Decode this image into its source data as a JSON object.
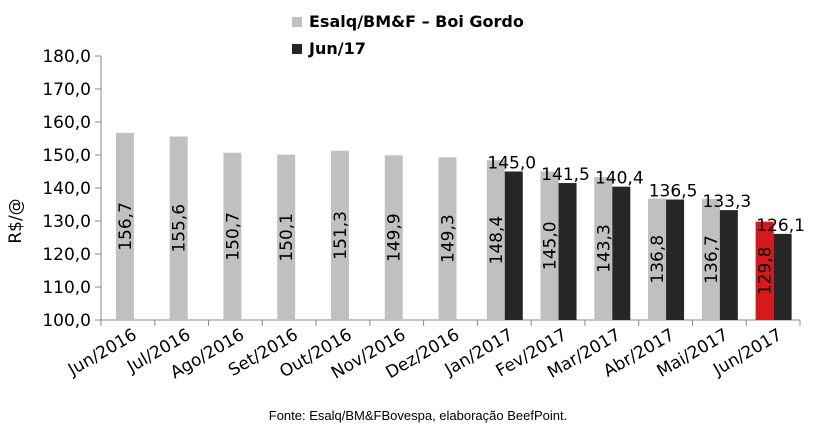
{
  "chart_data": {
    "type": "bar",
    "legend": [
      {
        "label": "Esalq/BM&F – Boi Gordo",
        "color": "#c0c0c0"
      },
      {
        "label": "Jun/17",
        "color": "#262626"
      }
    ],
    "legend_position": "top",
    "ylabel": "R$/@",
    "ylim": [
      100,
      180
    ],
    "yticks": [
      "100,0",
      "110,0",
      "120,0",
      "130,0",
      "140,0",
      "150,0",
      "160,0",
      "170,0",
      "180,0"
    ],
    "grid": false,
    "categories": [
      "Jun/2016",
      "Jul/2016",
      "Ago/2016",
      "Set/2016",
      "Out/2016",
      "Nov/2016",
      "Dez/2016",
      "Jan/2017",
      "Fev/2017",
      "Mar/2017",
      "Abr/2017",
      "Mai/2017",
      "Jun/2017"
    ],
    "series": [
      {
        "name": "Esalq/BM&F – Boi Gordo",
        "color": "#c0c0c0",
        "highlight_color": "#d7191c",
        "highlight_index": 12,
        "values": [
          156.7,
          155.6,
          150.7,
          150.1,
          151.3,
          149.9,
          149.3,
          148.4,
          145.0,
          143.3,
          136.8,
          136.7,
          129.8
        ],
        "labels": [
          "156,7",
          "155,6",
          "150,7",
          "150,1",
          "151,3",
          "149,9",
          "149,3",
          "148,4",
          "145,0",
          "143,3",
          "136,8",
          "136,7",
          "129,8"
        ]
      },
      {
        "name": "Jun/17",
        "color": "#262626",
        "values": [
          null,
          null,
          null,
          null,
          null,
          null,
          null,
          145.0,
          141.5,
          140.4,
          136.5,
          133.3,
          126.1
        ],
        "labels": [
          null,
          null,
          null,
          null,
          null,
          null,
          null,
          "145,0",
          "141,5",
          "140,4",
          "136,5",
          "133,3",
          "126,1"
        ]
      }
    ]
  },
  "source": "Fonte: Esalq/BM&FBovespa, elaboração BeefPoint."
}
